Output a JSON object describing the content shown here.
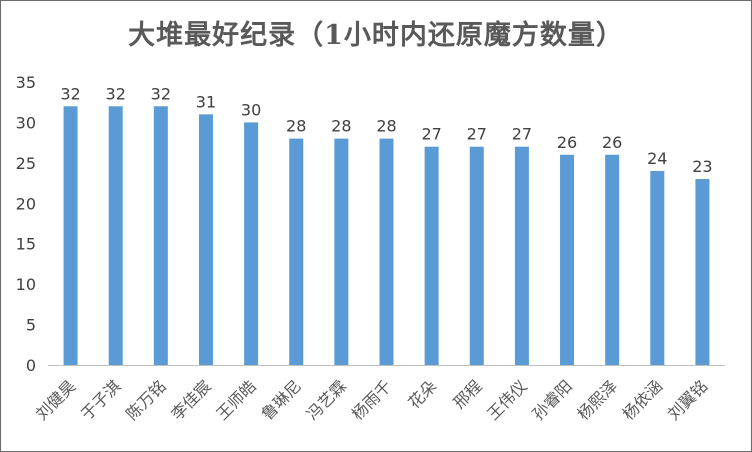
{
  "chart_data": {
    "type": "bar",
    "title": "大堆最好纪录（1小时内还原魔方数量）",
    "categories": [
      "刘健昊",
      "于子淇",
      "陈万铭",
      "李佳宸",
      "王师皓",
      "鲁琳尼",
      "冯艺霖",
      "杨雨千",
      "花朵",
      "邢程",
      "王伟仪",
      "孙睿阳",
      "杨熙泽",
      "杨依涵",
      "刘翼铭"
    ],
    "values": [
      32,
      32,
      32,
      31,
      30,
      28,
      28,
      28,
      27,
      27,
      27,
      26,
      26,
      24,
      23
    ],
    "y_ticks": [
      0,
      5,
      10,
      15,
      20,
      25,
      30,
      35
    ],
    "ylim": [
      0,
      35
    ],
    "bar_color": "#5b9bd5",
    "grid": false,
    "legend": "none",
    "xlabel": "",
    "ylabel": ""
  }
}
